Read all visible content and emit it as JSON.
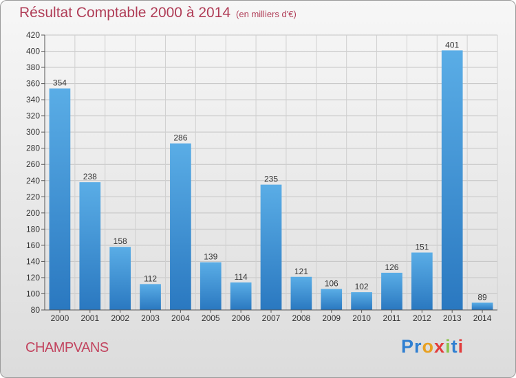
{
  "header": {
    "title": "Résultat Comptable 2000 à 2014",
    "unit": "(en milliers d'€)"
  },
  "footer": {
    "commune": "CHAMPVANS",
    "logo": {
      "text": "Proxiti",
      "colors": [
        "#2f7fd1",
        "#2f7fd1",
        "#e8a020",
        "#e23c3c",
        "#8bc34a",
        "#2f7fd1",
        "#e23c3c"
      ]
    }
  },
  "colors": {
    "bar_top": "#5aade6",
    "bar_bottom": "#2a78c0",
    "title": "#b03d57",
    "commune": "#c2445f"
  },
  "chart_data": {
    "type": "bar",
    "title": "Résultat Comptable 2000 à 2014",
    "subtitle": "(en milliers d'€)",
    "categories": [
      "2000",
      "2001",
      "2002",
      "2003",
      "2004",
      "2005",
      "2006",
      "2007",
      "2008",
      "2009",
      "2010",
      "2011",
      "2012",
      "2013",
      "2014"
    ],
    "values": [
      354,
      238,
      158,
      112,
      286,
      139,
      114,
      235,
      121,
      106,
      102,
      126,
      151,
      401,
      89
    ],
    "ylim": [
      80,
      420
    ],
    "yticks": [
      80,
      100,
      120,
      140,
      160,
      180,
      200,
      220,
      240,
      260,
      280,
      300,
      320,
      340,
      360,
      380,
      400,
      420
    ],
    "grid": true,
    "data_labels": true
  }
}
